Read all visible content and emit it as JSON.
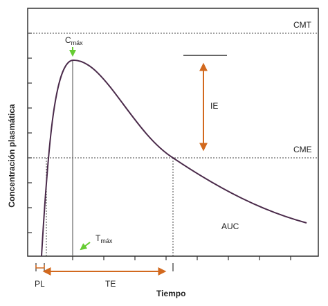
{
  "y_axis_label": "Concentración plasmática",
  "x_axis_label": "Tiempo",
  "lines": {
    "cmt": "CMT",
    "cme": "CME"
  },
  "cmax": {
    "main": "C",
    "sub": "máx"
  },
  "tmax": {
    "main": "T",
    "sub": "máx"
  },
  "regions": {
    "ie": "IE",
    "auc": "AUC"
  },
  "intervals": {
    "pl": "PL",
    "te": "TE"
  }
}
